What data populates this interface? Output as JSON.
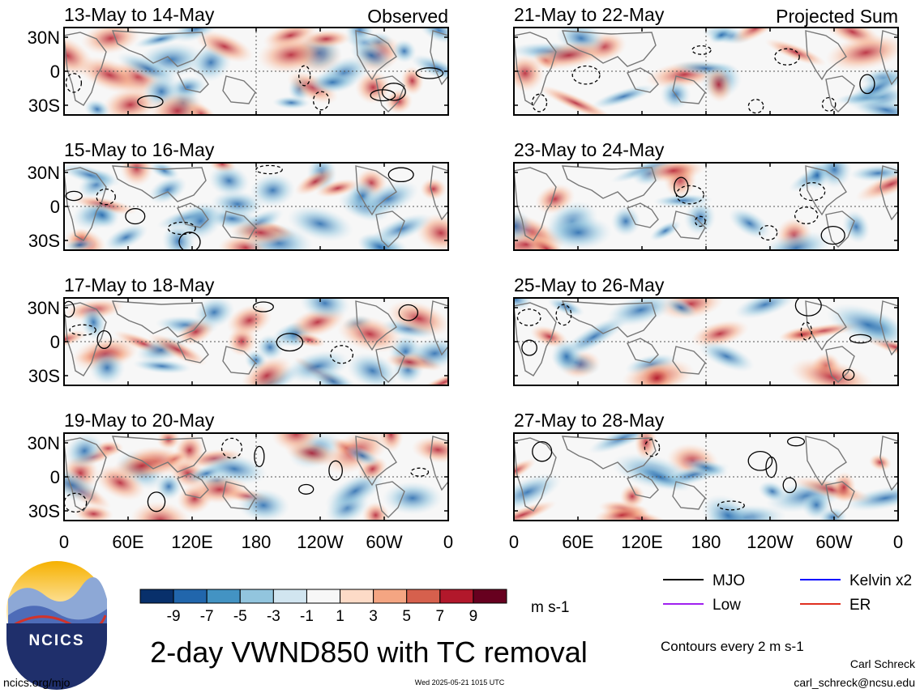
{
  "panels": [
    {
      "id": "p1",
      "col": 0,
      "row": 0,
      "title": "13-May to 14-May",
      "corner_label": "Observed"
    },
    {
      "id": "p2",
      "col": 0,
      "row": 1,
      "title": "15-May to 16-May",
      "corner_label": ""
    },
    {
      "id": "p3",
      "col": 0,
      "row": 2,
      "title": "17-May to 18-May",
      "corner_label": ""
    },
    {
      "id": "p4",
      "col": 0,
      "row": 3,
      "title": "19-May to 20-May",
      "corner_label": ""
    },
    {
      "id": "p5",
      "col": 1,
      "row": 0,
      "title": "21-May to 22-May",
      "corner_label": "Projected Sum"
    },
    {
      "id": "p6",
      "col": 1,
      "row": 1,
      "title": "23-May to 24-May",
      "corner_label": ""
    },
    {
      "id": "p7",
      "col": 1,
      "row": 2,
      "title": "25-May to 26-May",
      "corner_label": ""
    },
    {
      "id": "p8",
      "col": 1,
      "row": 3,
      "title": "27-May to 28-May",
      "corner_label": ""
    }
  ],
  "lat_labels": [
    "30N",
    "0",
    "30S"
  ],
  "lon_labels": [
    "0",
    "60E",
    "120E",
    "180",
    "120W",
    "60W",
    "0"
  ],
  "colorbar": {
    "colors": [
      "#08306b",
      "#2166ac",
      "#4393c3",
      "#92c5de",
      "#d1e5f0",
      "#f7f7f7",
      "#fddbc7",
      "#f4a582",
      "#d6604d",
      "#b2182b",
      "#67001f"
    ],
    "tick_labels": [
      "-9",
      "-7",
      "-5",
      "-3",
      "-1",
      "1",
      "3",
      "5",
      "7",
      "9"
    ],
    "units": "m s-1"
  },
  "legend": [
    {
      "label": "MJO",
      "color": "#000000"
    },
    {
      "label": "Kelvin x2",
      "color": "#0000ff"
    },
    {
      "label": "Low",
      "color": "#a020f0"
    },
    {
      "label": "ER",
      "color": "#e03020"
    }
  ],
  "main_title": "2-day VWND850 with TC removal",
  "contour_note": "Contours every 2 m s-1",
  "logo_text": "NCICS",
  "site": "ncics.org/mjo",
  "timestamp": "Wed 2025-05-21 1015 UTC",
  "author": "Carl Schreck",
  "email": "carl_schreck@ncsu.edu"
}
